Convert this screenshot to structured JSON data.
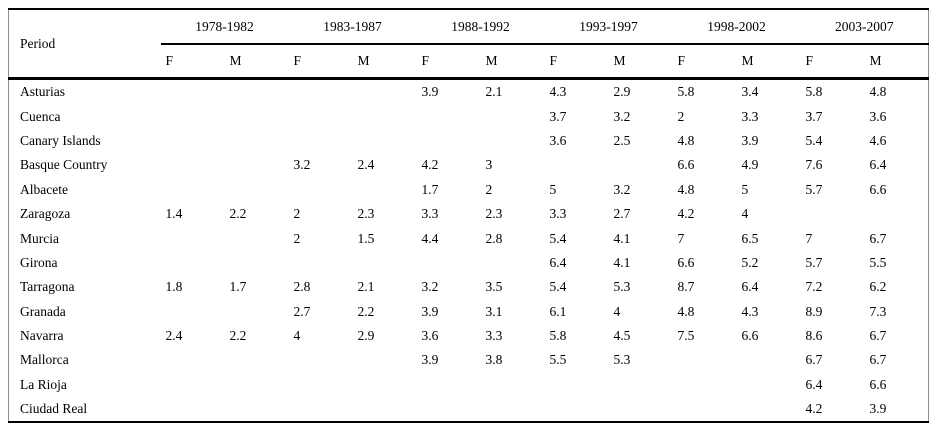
{
  "table": {
    "corner_label": "Period",
    "period_groups": [
      "1978-1982",
      "1983-1987",
      "1988-1992",
      "1993-1997",
      "1998-2002",
      "2003-2007"
    ],
    "sub_headers": [
      "F",
      "M"
    ],
    "rows": [
      {
        "label": "Asturias",
        "values": [
          "",
          "",
          "",
          "",
          "3.9",
          "2.1",
          "4.3",
          "2.9",
          "5.8",
          "3.4",
          "5.8",
          "4.8"
        ]
      },
      {
        "label": "Cuenca",
        "values": [
          "",
          "",
          "",
          "",
          "",
          "",
          "3.7",
          "3.2",
          "2",
          "3.3",
          "3.7",
          "3.6"
        ]
      },
      {
        "label": "Canary Islands",
        "values": [
          "",
          "",
          "",
          "",
          "",
          "",
          "3.6",
          "2.5",
          "4.8",
          "3.9",
          "5.4",
          "4.6"
        ]
      },
      {
        "label": "Basque Country",
        "values": [
          "",
          "",
          "3.2",
          "2.4",
          "4.2",
          "3",
          "",
          "",
          "6.6",
          "4.9",
          "7.6",
          "6.4"
        ]
      },
      {
        "label": "Albacete",
        "values": [
          "",
          "",
          "",
          "",
          "1.7",
          "2",
          "5",
          "3.2",
          "4.8",
          "5",
          "5.7",
          "6.6"
        ]
      },
      {
        "label": "Zaragoza",
        "values": [
          "1.4",
          "2.2",
          "2",
          "2.3",
          "3.3",
          "2.3",
          "3.3",
          "2.7",
          "4.2",
          "4",
          "",
          ""
        ]
      },
      {
        "label": "Murcia",
        "values": [
          "",
          "",
          "2",
          "1.5",
          "4.4",
          "2.8",
          "5.4",
          "4.1",
          "7",
          "6.5",
          "7",
          "6.7"
        ]
      },
      {
        "label": "Girona",
        "values": [
          "",
          "",
          "",
          "",
          "",
          "",
          "6.4",
          "4.1",
          "6.6",
          "5.2",
          "5.7",
          "5.5"
        ]
      },
      {
        "label": "Tarragona",
        "values": [
          "1.8",
          "1.7",
          "2.8",
          "2.1",
          "3.2",
          "3.5",
          "5.4",
          "5.3",
          "8.7",
          "6.4",
          "7.2",
          "6.2"
        ]
      },
      {
        "label": "Granada",
        "values": [
          "",
          "",
          "2.7",
          "2.2",
          "3.9",
          "3.1",
          "6.1",
          "4",
          "4.8",
          "4.3",
          "8.9",
          "7.3"
        ]
      },
      {
        "label": "Navarra",
        "values": [
          "2.4",
          "2.2",
          "4",
          "2.9",
          "3.6",
          "3.3",
          "5.8",
          "4.5",
          "7.5",
          "6.6",
          "8.6",
          "6.7"
        ]
      },
      {
        "label": "Mallorca",
        "values": [
          "",
          "",
          "",
          "",
          "3.9",
          "3.8",
          "5.5",
          "5.3",
          "",
          "",
          "6.7",
          "6.7"
        ]
      },
      {
        "label": "La Rioja",
        "values": [
          "",
          "",
          "",
          "",
          "",
          "",
          "",
          "",
          "",
          "",
          "6.4",
          "6.6"
        ]
      },
      {
        "label": "Ciudad Real",
        "values": [
          "",
          "",
          "",
          "",
          "",
          "",
          "",
          "",
          "",
          "",
          "4.2",
          "3.9"
        ]
      }
    ]
  },
  "colors": {
    "text": "#000000",
    "background": "#ffffff",
    "rule_dark": "#000000",
    "frame_light": "#8f8f8f"
  }
}
